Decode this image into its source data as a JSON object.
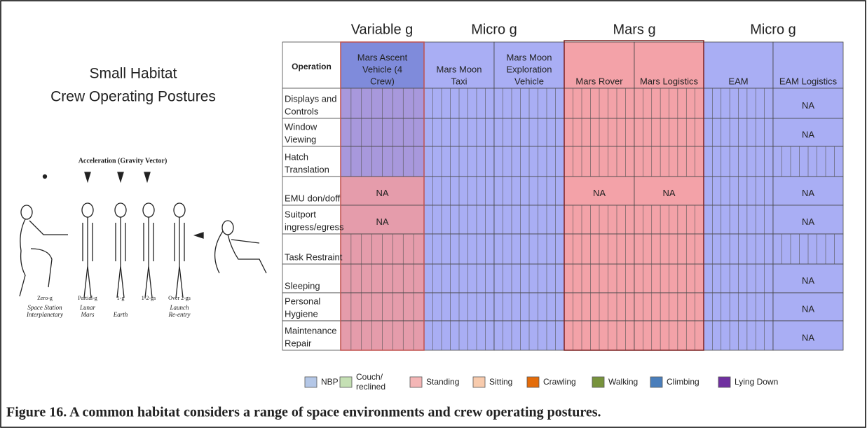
{
  "left_title": [
    "Small Habitat",
    "Crew Operating Postures"
  ],
  "illustration": {
    "title": "Acceleration (Gravity Vector)",
    "levels": [
      "Zero-g",
      "Partial-g",
      "1-g",
      "1-2-gs",
      "Over 2-gs"
    ],
    "environments": [
      [
        "Space Station",
        "Interplanetary"
      ],
      [
        "Lunar",
        "Mars"
      ],
      [
        "Earth"
      ],
      [
        "Launch",
        "Re-entry"
      ]
    ]
  },
  "table": {
    "groups": [
      "Variable g",
      "Micro g",
      "Mars g",
      "Micro g"
    ],
    "header": "Operation",
    "columns": [
      [
        "Mars Ascent",
        "Vehicle (4",
        "Crew)"
      ],
      [
        "Mars Moon",
        "Taxi"
      ],
      [
        "Mars Moon",
        "Exploration",
        "Vehicle"
      ],
      [
        "Mars Rover"
      ],
      [
        "Mars Logistics"
      ],
      [
        "EAM"
      ],
      [
        "EAM Logistics"
      ]
    ],
    "rows": [
      {
        "operation": [
          "Displays and",
          "Controls"
        ],
        "cells": [
          null,
          null,
          null,
          null,
          null,
          null,
          "NA"
        ]
      },
      {
        "operation": [
          "Window",
          "Viewing"
        ],
        "cells": [
          null,
          null,
          null,
          null,
          null,
          null,
          "NA"
        ]
      },
      {
        "operation": [
          "Hatch",
          "Translation"
        ],
        "cells": [
          null,
          null,
          null,
          null,
          null,
          null,
          null
        ]
      },
      {
        "operation": [
          "EMU don/doff"
        ],
        "cells": [
          "NA",
          null,
          null,
          "NA",
          "NA",
          null,
          "NA"
        ]
      },
      {
        "operation": [
          "Suitport",
          "ingress/egress"
        ],
        "cells": [
          "NA",
          null,
          null,
          null,
          null,
          null,
          "NA"
        ]
      },
      {
        "operation": [
          "Task Restraint"
        ],
        "cells": [
          null,
          null,
          null,
          null,
          null,
          null,
          null
        ]
      },
      {
        "operation": [
          "Sleeping"
        ],
        "cells": [
          null,
          null,
          null,
          null,
          null,
          null,
          "NA"
        ]
      },
      {
        "operation": [
          "Personal",
          "Hygiene"
        ],
        "cells": [
          null,
          null,
          null,
          null,
          null,
          null,
          "NA"
        ]
      },
      {
        "operation": [
          "Maintenance",
          "Repair"
        ],
        "cells": [
          null,
          null,
          null,
          null,
          null,
          null,
          "NA"
        ]
      }
    ]
  },
  "legend": [
    {
      "name": [
        "NBP"
      ],
      "color": "#b4c7e7"
    },
    {
      "name": [
        "Couch/",
        "reclined"
      ],
      "color": "#c5e0b4"
    },
    {
      "name": [
        "Standing"
      ],
      "color": "#f4b6b6"
    },
    {
      "name": [
        "Sitting"
      ],
      "color": "#f8cbad"
    },
    {
      "name": [
        "Crawling"
      ],
      "color": "#e46c0a"
    },
    {
      "name": [
        "Walking"
      ],
      "color": "#77933c"
    },
    {
      "name": [
        "Climbing"
      ],
      "color": "#4a7ebb"
    },
    {
      "name": [
        "Lying Down"
      ],
      "color": "#7030a0"
    }
  ],
  "caption": "Figure 16. A common habitat considers a range of space environments and crew operating postures."
}
